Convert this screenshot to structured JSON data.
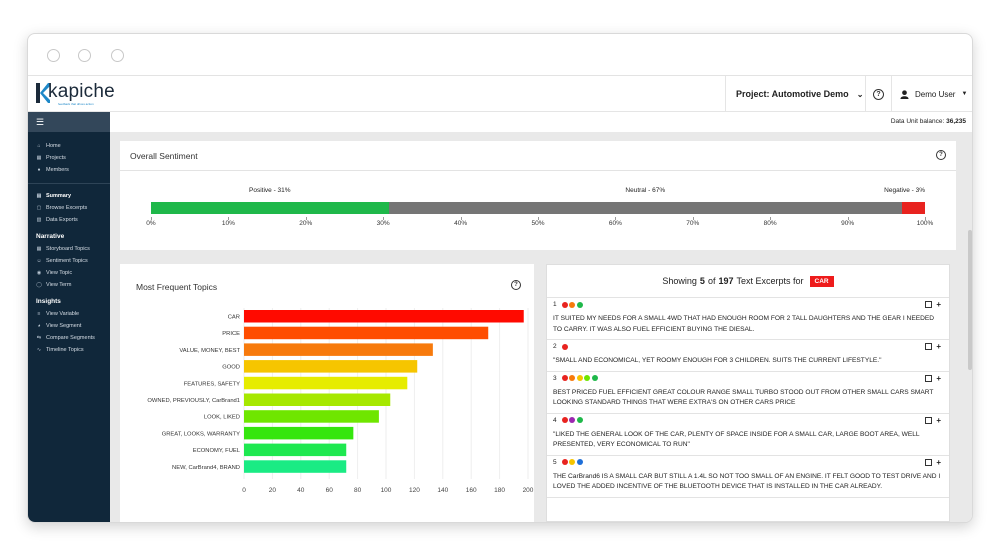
{
  "app": {
    "logo_text": "kapiche",
    "logo_tagline": "feedback that drives action",
    "project_label": "Project: Automotive Demo",
    "user_label": "Demo User",
    "data_unit_label": "Data Unit balance:",
    "data_unit_value": "36,235"
  },
  "sidebar": {
    "top_items": [
      {
        "label": "Home",
        "icon": "home-icon"
      },
      {
        "label": "Projects",
        "icon": "projects-icon"
      },
      {
        "label": "Members",
        "icon": "members-icon"
      }
    ],
    "main_items": [
      {
        "label": "Summary",
        "icon": "summary-icon",
        "active": true
      },
      {
        "label": "Browse Excerpts",
        "icon": "browse-icon"
      },
      {
        "label": "Data Exports",
        "icon": "export-icon"
      }
    ],
    "narrative_heading": "Narrative",
    "narrative_items": [
      {
        "label": "Storyboard Topics",
        "icon": "storyboard-icon"
      },
      {
        "label": "Sentiment Topics",
        "icon": "sentiment-icon"
      },
      {
        "label": "View Topic",
        "icon": "view-topic-icon"
      },
      {
        "label": "View Term",
        "icon": "view-term-icon"
      }
    ],
    "insights_heading": "Insights",
    "insights_items": [
      {
        "label": "View Variable",
        "icon": "variable-icon"
      },
      {
        "label": "View Segment",
        "icon": "segment-icon"
      },
      {
        "label": "Compare Segments",
        "icon": "compare-icon"
      },
      {
        "label": "Timeline Topics",
        "icon": "timeline-icon"
      }
    ]
  },
  "sentiment": {
    "title": "Overall Sentiment",
    "segments": [
      {
        "label": "Positive - 31%",
        "value": 31,
        "color": "#1fb84a"
      },
      {
        "label": "Neutral - 67%",
        "value": 67,
        "color": "#757575"
      },
      {
        "label": "Negative - 3%",
        "value": 3,
        "color": "#e8231f"
      }
    ],
    "ticks": [
      "0%",
      "10%",
      "20%",
      "30%",
      "40%",
      "50%",
      "60%",
      "70%",
      "80%",
      "90%",
      "100%"
    ]
  },
  "topics": {
    "title": "Most Frequent Topics"
  },
  "chart_data": {
    "type": "bar",
    "orientation": "horizontal",
    "title": "Most Frequent Topics",
    "categories": [
      "CAR",
      "PRICE",
      "VALUE, MONEY, BEST",
      "GOOD",
      "FEATURES, SAFETY",
      "OWNED, PREVIOUSLY, CarBrand1",
      "LOOK, LIKED",
      "GREAT, LOOKS, WARRANTY",
      "ECONOMY, FUEL",
      "NEW, CarBrand4, BRAND"
    ],
    "values": [
      197,
      172,
      133,
      122,
      115,
      103,
      95,
      77,
      72,
      72
    ],
    "colors": [
      "#ff0a00",
      "#ff4d00",
      "#f77a0c",
      "#f6c500",
      "#e6ec00",
      "#a6e800",
      "#6fe600",
      "#35e60e",
      "#1ee850",
      "#1aeb84"
    ],
    "xlim": [
      0,
      200
    ],
    "xticks": [
      "0",
      "20",
      "40",
      "60",
      "80",
      "100",
      "120",
      "140",
      "160",
      "180",
      "200"
    ],
    "grid": true
  },
  "excerpts": {
    "showing_label": "Showing",
    "count": "5",
    "of_label": "of",
    "total": "197",
    "suffix_label": "Text Excerpts for",
    "tag": "CAR",
    "items": [
      {
        "num": "1",
        "dots": [
          "#e8231f",
          "#f77a0c",
          "#1fb84a"
        ],
        "text": "IT SUITED MY NEEDS FOR A SMALL 4WD THAT HAD ENOUGH ROOM FOR 2 TALL DAUGHTERS AND THE GEAR I NEEDED TO CARRY. IT WAS ALSO FUEL EFFICIENT BUYING THE DIESAL."
      },
      {
        "num": "2",
        "dots": [
          "#e8231f"
        ],
        "text": "\"SMALL AND ECONOMICAL, YET ROOMY ENOUGH FOR 3 CHILDREN. SUITS THE CURRENT LIFESTYLE.\""
      },
      {
        "num": "3",
        "dots": [
          "#e8231f",
          "#f77a0c",
          "#f6c500",
          "#6fe600",
          "#1fb84a"
        ],
        "text": "BEST PRICED FUEL EFFICIENT GREAT COLOUR RANGE SMALL TURBO STOOD OUT FROM OTHER SMALL CARS SMART LOOKING STANDARD THINGS THAT WERE EXTRA'S ON OTHER CARS PRICE"
      },
      {
        "num": "4",
        "dots": [
          "#e8231f",
          "#9b27b0",
          "#1fb84a"
        ],
        "text": "\"LIKED THE GENERAL LOOK OF THE CAR, PLENTY OF SPACE INSIDE FOR A SMALL CAR, LARGE BOOT AREA, WELL PRESENTED, VERY ECONOMICAL TO RUN\""
      },
      {
        "num": "5",
        "dots": [
          "#e8231f",
          "#f6c500",
          "#1e6fd9"
        ],
        "text": "THE CarBrand6 IS A SMALL CAR BUT STILL A 1.4L SO NOT TOO SMALL OF AN ENGINE. IT FELT GOOD TO TEST DRIVE AND I LOVED THE ADDED INCENTIVE OF THE BLUETOOTH DEVICE THAT IS INSTALLED IN THE CAR ALREADY."
      }
    ]
  }
}
